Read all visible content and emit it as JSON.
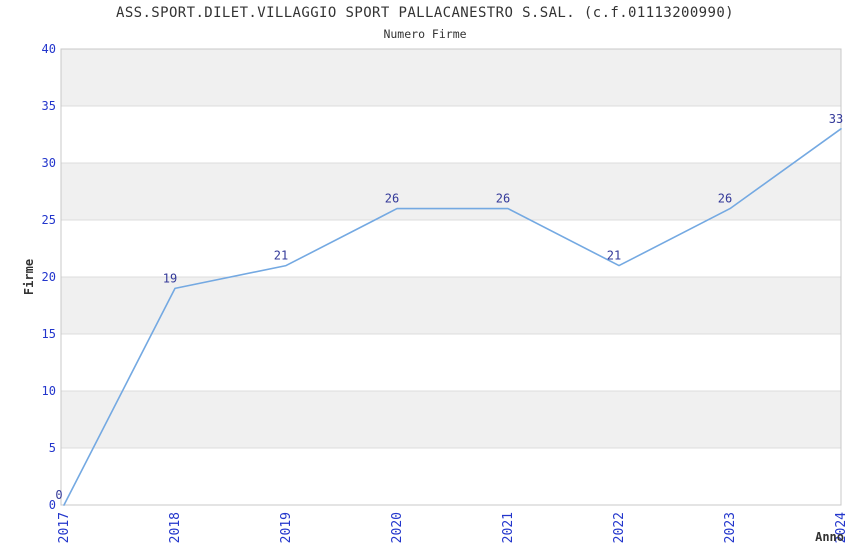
{
  "chart_data": {
    "type": "line",
    "title": "ASS.SPORT.DILET.VILLAGGIO SPORT PALLACANESTRO S.SAL. (c.f.01113200990)",
    "subtitle": "Numero Firme",
    "x_label": "Anno",
    "y_label": "Firme",
    "categories": [
      "2017",
      "2018",
      "2019",
      "2020",
      "2021",
      "2022",
      "2023",
      "2024"
    ],
    "series": [
      {
        "name": "Numero Firme",
        "values": [
          0,
          19,
          21,
          26,
          26,
          21,
          26,
          33
        ]
      }
    ],
    "point_labels": [
      "0",
      "19",
      "21",
      "26",
      "26",
      "21",
      "26",
      "33"
    ],
    "ylim": [
      0,
      40
    ],
    "ytick_step": 5,
    "yticks": [
      0,
      5,
      10,
      15,
      20,
      25,
      30,
      35,
      40
    ],
    "grid": "horizontal alternating bands every 5 units",
    "legend_position": "none",
    "colors": {
      "line": "#74a9e2",
      "point_label": "#333999",
      "tick_label": "#2336cc",
      "text": "#333333",
      "band": "#f0f0f0",
      "band_alt": "#ffffff",
      "gridline": "#dcdcdc",
      "border": "#c8c8c8",
      "background": "#ffffff"
    }
  }
}
